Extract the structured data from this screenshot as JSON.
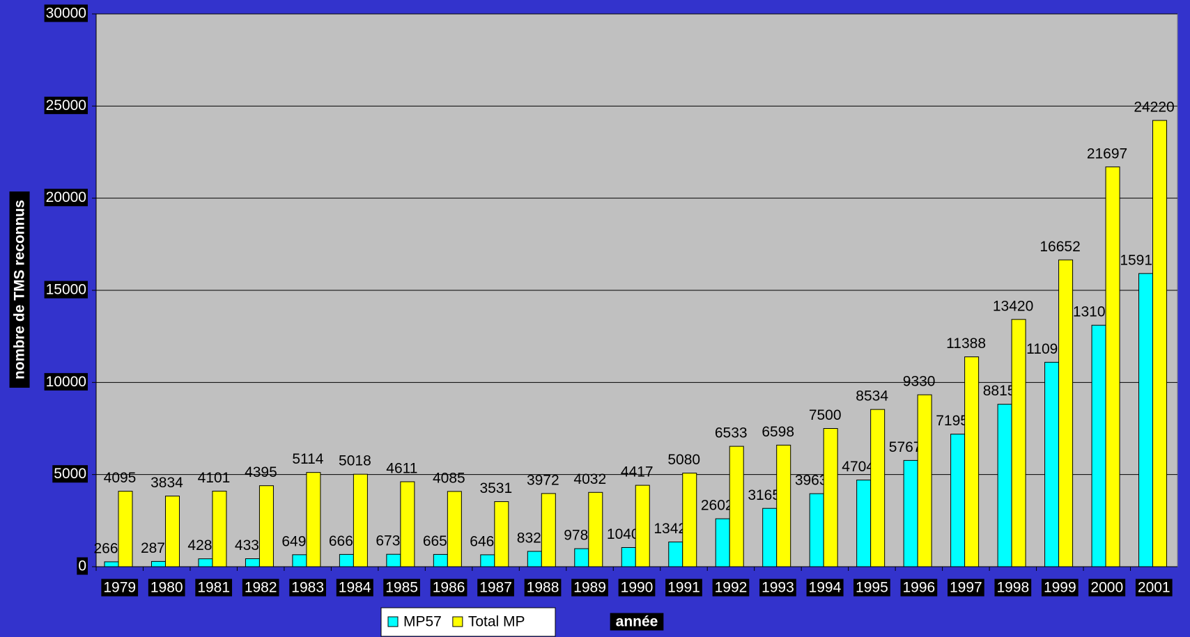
{
  "chart_data": {
    "type": "bar",
    "y_label": "nombre de TMS reconnus",
    "x_label": "année",
    "categories": [
      "1979",
      "1980",
      "1981",
      "1982",
      "1983",
      "1984",
      "1985",
      "1986",
      "1987",
      "1988",
      "1989",
      "1990",
      "1991",
      "1992",
      "1993",
      "1994",
      "1995",
      "1996",
      "1997",
      "1998",
      "1999",
      "2000",
      "2001"
    ],
    "series": [
      {
        "name": "MP57",
        "color": "#00ffff",
        "values": [
          266,
          287,
          428,
          433,
          649,
          666,
          673,
          665,
          646,
          832,
          978,
          1040,
          1342,
          2602,
          3165,
          3963,
          4704,
          5767,
          7195,
          8815,
          11095,
          13104,
          15912
        ]
      },
      {
        "name": "Total MP",
        "color": "#ffff00",
        "values": [
          4095,
          3834,
          4101,
          4395,
          5114,
          5018,
          4611,
          4085,
          3531,
          3972,
          4032,
          4417,
          5080,
          6533,
          6598,
          7500,
          8534,
          9330,
          11388,
          13420,
          16652,
          21697,
          24220
        ]
      }
    ],
    "ylim": [
      0,
      30000
    ],
    "yticks": [
      0,
      5000,
      10000,
      15000,
      20000,
      25000,
      30000
    ],
    "grid": true,
    "legend": "bottom"
  }
}
